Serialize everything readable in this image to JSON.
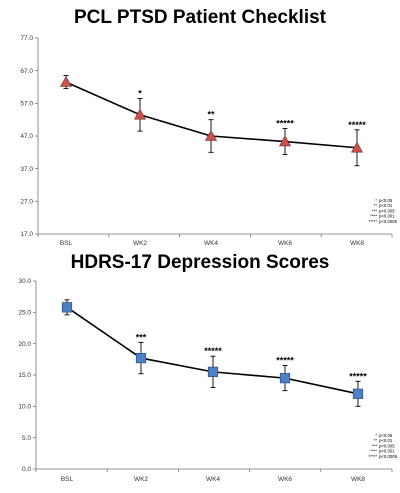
{
  "charts": [
    {
      "title": "PCL PTSD Patient Checklist"
    },
    {
      "title": "HDRS-17 Depression Scores"
    }
  ],
  "chart_data": [
    {
      "type": "line",
      "title": "PCL PTSD Patient Checklist",
      "xlabel": "",
      "ylabel": "",
      "categories": [
        "BSL",
        "WK2",
        "WK4",
        "WK6",
        "WK8"
      ],
      "series": [
        {
          "values": [
            63.5,
            53.5,
            47.0,
            45.3,
            43.4
          ],
          "error": [
            2.0,
            5.0,
            5.0,
            4.0,
            5.5
          ],
          "significance": [
            "",
            "*",
            "**",
            "*****",
            "*****"
          ],
          "marker": "triangle",
          "marker_color": "#c9524a"
        }
      ],
      "ylim": [
        17.0,
        77.0
      ],
      "yticks": [
        "17.0",
        "27.0",
        "37.0",
        "47.0",
        "57.0",
        "67.0",
        "77.0"
      ],
      "grid": false,
      "legend": {
        "placement": "bottom-right",
        "entries": [
          {
            "stars": "*",
            "text": "p<0.05"
          },
          {
            "stars": "**",
            "text": "p<0.01"
          },
          {
            "stars": "***",
            "text": "p<0.005"
          },
          {
            "stars": "****",
            "text": "p<0.001"
          },
          {
            "stars": "*****",
            "text": "p<0.0005"
          }
        ]
      }
    },
    {
      "type": "line",
      "title": "HDRS-17 Depression Scores",
      "xlabel": "",
      "ylabel": "",
      "categories": [
        "BSL",
        "WK2",
        "WK4",
        "WK6",
        "WK8"
      ],
      "series": [
        {
          "values": [
            25.8,
            17.7,
            15.5,
            14.5,
            12.0
          ],
          "error": [
            1.2,
            2.5,
            2.5,
            2.0,
            2.0
          ],
          "significance": [
            "",
            "***",
            "*****",
            "*****",
            "*****"
          ],
          "marker": "square",
          "marker_color": "#4d81c6"
        }
      ],
      "ylim": [
        0.0,
        30.0
      ],
      "yticks": [
        "0.0",
        "5.0",
        "10.0",
        "15.0",
        "20.0",
        "25.0",
        "30.0"
      ],
      "grid": false,
      "legend": {
        "placement": "bottom-right",
        "entries": [
          {
            "stars": "*",
            "text": "p<0.05"
          },
          {
            "stars": "**",
            "text": "p<0.01"
          },
          {
            "stars": "***",
            "text": "p<0.005"
          },
          {
            "stars": "****",
            "text": "p<0.001"
          },
          {
            "stars": "*****",
            "text": "p<0.0005"
          }
        ]
      }
    }
  ]
}
